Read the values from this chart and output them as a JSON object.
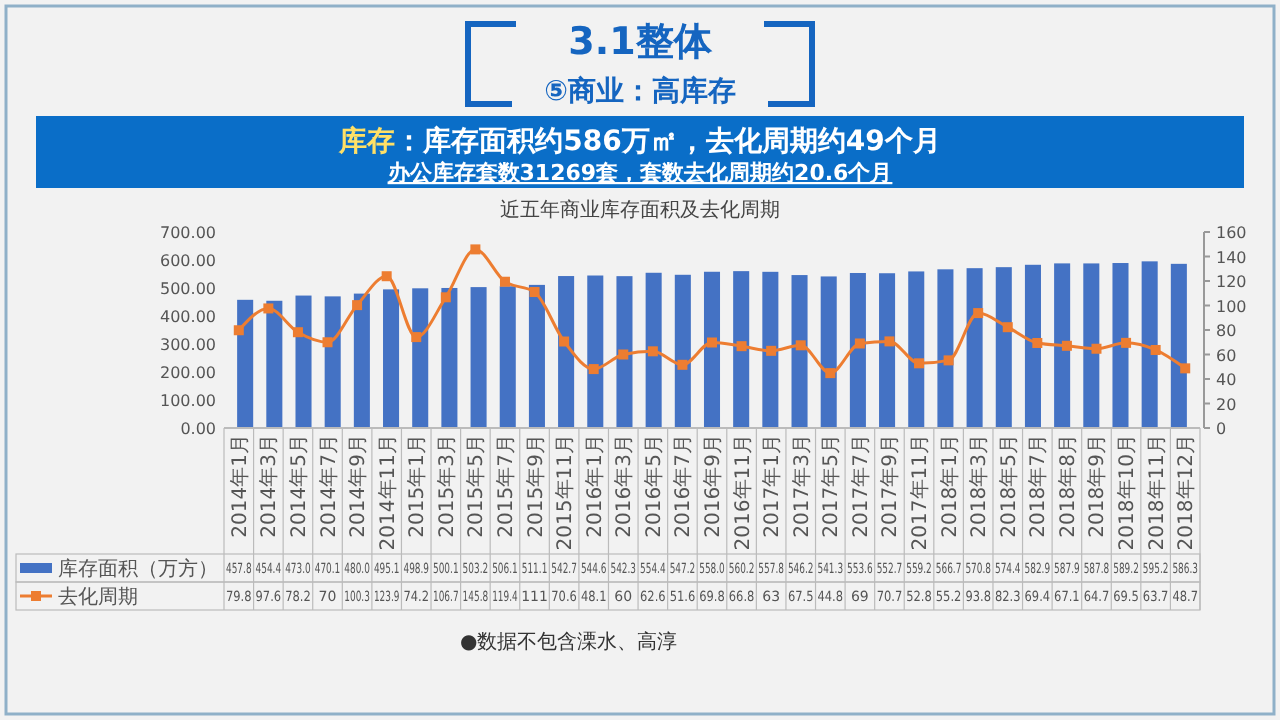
{
  "chart_data": {
    "type": "bar",
    "title": "近五年商业库存面积及去化周期",
    "annotations": [
      "3.1整体",
      "⑤商业：高库存",
      "库存",
      "：库存面积约586万㎡，去化周期约49个月",
      "办公库存套数31269套，套数去化周期约20.6个月",
      "●数据不包含溧水、高淳"
    ],
    "categories": [
      "2014年1月",
      "2014年3月",
      "2014年5月",
      "2014年7月",
      "2014年9月",
      "2014年11月",
      "2015年1月",
      "2015年3月",
      "2015年5月",
      "2015年7月",
      "2015年9月",
      "2015年11月",
      "2016年1月",
      "2016年3月",
      "2016年5月",
      "2016年7月",
      "2016年9月",
      "2016年11月",
      "2017年1月",
      "2017年3月",
      "2017年5月",
      "2017年7月",
      "2017年9月",
      "2017年11月",
      "2018年1月",
      "2018年3月",
      "2018年5月",
      "2018年7月",
      "2018年8月",
      "2018年9月",
      "2018年10月",
      "2018年11月",
      "2018年12月"
    ],
    "series": [
      {
        "name": "库存面积（万方）",
        "color": "#4472c4",
        "values": [
          457.8,
          454.4,
          473.0,
          470.1,
          480.0,
          495.1,
          498.9,
          500.1,
          503.2,
          506.1,
          511.1,
          542.7,
          544.6,
          542.3,
          554.4,
          547.2,
          558.0,
          560.2,
          557.8,
          546.2,
          541.3,
          553.6,
          552.7,
          559.2,
          566.7,
          570.8,
          574.4,
          582.9,
          587.9,
          587.8,
          589.2,
          595.2,
          586.3
        ],
        "value_labels": [
          "457.8",
          "454.4",
          "473.0",
          "470.1",
          "480.0",
          "495.1",
          "498.9",
          "500.1",
          "503.2",
          "506.1",
          "511.1",
          "542.7",
          "544.6",
          "542.3",
          "554.4",
          "547.2",
          "558.0",
          "560.2",
          "557.8",
          "546.2",
          "541.3",
          "553.6",
          "552.7",
          "559.2",
          "566.7",
          "570.8",
          "574.4",
          "582.9",
          "587.9",
          "587.8",
          "589.2",
          "595.2",
          "586.3"
        ]
      },
      {
        "name": "去化周期",
        "type": "line",
        "axis": "y2",
        "color": "#ed7d31",
        "values": [
          79.8,
          97.6,
          78.2,
          70,
          100.3,
          123.9,
          74.2,
          106.7,
          145.8,
          119.4,
          111,
          70.6,
          48.1,
          60,
          62.6,
          51.6,
          69.8,
          66.8,
          63,
          67.5,
          44.8,
          69,
          70.7,
          52.8,
          55.2,
          93.8,
          82.3,
          69.4,
          67.1,
          64.7,
          69.5,
          63.7,
          48.7
        ]
      }
    ],
    "ylim": [
      0,
      700
    ],
    "yticks": [
      {
        "value": 0,
        "label": "0.00"
      },
      {
        "value": 100,
        "label": "100.00"
      },
      {
        "value": 200,
        "label": "200.00"
      },
      {
        "value": 300,
        "label": "300.00"
      },
      {
        "value": 400,
        "label": "400.00"
      },
      {
        "value": 500,
        "label": "500.00"
      },
      {
        "value": 600,
        "label": "600.00"
      },
      {
        "value": 700,
        "label": "700.00"
      }
    ],
    "y2lim": [
      0,
      160
    ],
    "y2ticks": [
      0,
      20,
      40,
      60,
      80,
      100,
      120,
      140,
      160
    ],
    "marker": "square",
    "data_labels": true,
    "legend": "bottom"
  }
}
